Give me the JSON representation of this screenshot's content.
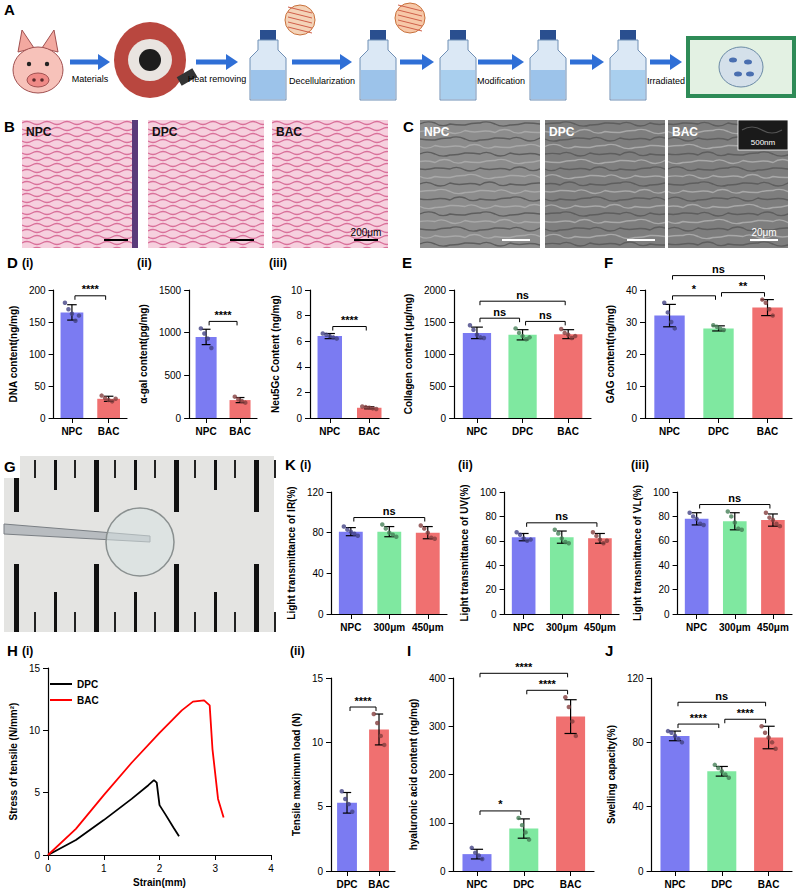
{
  "panels": {
    "A": {
      "label": "A",
      "steps": [
        "Materials",
        "Heat removing",
        "Decellularization",
        "Modification",
        "Irradiated"
      ]
    },
    "B": {
      "label": "B",
      "images": [
        "NPC",
        "DPC",
        "BAC"
      ],
      "scale_bar": "200μm"
    },
    "C": {
      "label": "C",
      "images": [
        "NPC",
        "DPC",
        "BAC"
      ],
      "scale_bar": "20μm",
      "inset_scale_bar": "500nm"
    },
    "G": {
      "label": "G"
    }
  },
  "chart_data": [
    {
      "type": "bar",
      "panel_label": "D",
      "title": "(i)",
      "categories": [
        "NPC",
        "BAC"
      ],
      "values": [
        165,
        30
      ],
      "errors": [
        12,
        4
      ],
      "points": [
        [
          180,
          170,
          163,
          152,
          160
        ],
        [
          35,
          31,
          28,
          26,
          30
        ]
      ],
      "colors": [
        "#7b7bf2",
        "#f07070"
      ],
      "ylabel": "DNA content(ng/mg)",
      "ylim": [
        0,
        200
      ],
      "yticks": [
        0,
        50,
        100,
        150,
        200
      ],
      "grid": false,
      "annotations": [
        {
          "from": "NPC",
          "to": "BAC",
          "label": "****"
        }
      ]
    },
    {
      "type": "bar",
      "title": "(ii)",
      "categories": [
        "NPC",
        "BAC"
      ],
      "values": [
        950,
        210
      ],
      "errors": [
        90,
        30
      ],
      "points": [
        [
          1050,
          990,
          930,
          820
        ],
        [
          250,
          220,
          200,
          180
        ]
      ],
      "colors": [
        "#7b7bf2",
        "#f07070"
      ],
      "ylabel": "α-gal content(pg/mg)",
      "ylim": [
        0,
        1500
      ],
      "yticks": [
        0,
        500,
        1000,
        1500
      ],
      "grid": false,
      "annotations": [
        {
          "from": "NPC",
          "to": "BAC",
          "label": "****"
        }
      ]
    },
    {
      "type": "bar",
      "title": "(iii)",
      "categories": [
        "NPC",
        "BAC"
      ],
      "values": [
        6.4,
        0.8
      ],
      "errors": [
        0.2,
        0.08
      ],
      "points": [
        [
          6.6,
          6.5,
          6.4,
          6.3,
          6.2
        ],
        [
          0.9,
          0.85,
          0.8,
          0.75,
          0.7
        ]
      ],
      "colors": [
        "#7b7bf2",
        "#f07070"
      ],
      "ylabel": "Neu5Gc Content (ng/mg)",
      "ylim": [
        0,
        10
      ],
      "yticks": [
        0,
        2,
        4,
        6,
        8,
        10
      ],
      "grid": false,
      "annotations": [
        {
          "from": "NPC",
          "to": "BAC",
          "label": "****"
        }
      ]
    },
    {
      "type": "bar",
      "panel_label": "E",
      "categories": [
        "NPC",
        "DPC",
        "BAC"
      ],
      "values": [
        1330,
        1300,
        1310
      ],
      "errors": [
        90,
        80,
        70
      ],
      "points": [
        [
          1450,
          1380,
          1300,
          1260,
          1250
        ],
        [
          1400,
          1330,
          1280,
          1230,
          1260
        ],
        [
          1390,
          1330,
          1300,
          1250,
          1280
        ]
      ],
      "colors": [
        "#7b7bf2",
        "#7fe8a0",
        "#f07070"
      ],
      "ylabel": "Collagen content (μg/mg)",
      "ylim": [
        0,
        2000
      ],
      "yticks": [
        0,
        500,
        1000,
        1500,
        2000
      ],
      "grid": false,
      "annotations": [
        {
          "from": "NPC",
          "to": "DPC",
          "label": "ns"
        },
        {
          "from": "DPC",
          "to": "BAC",
          "label": "ns"
        },
        {
          "from": "NPC",
          "to": "BAC",
          "label": "ns"
        }
      ]
    },
    {
      "type": "bar",
      "panel_label": "F",
      "categories": [
        "NPC",
        "DPC",
        "BAC"
      ],
      "values": [
        32,
        28,
        34.5
      ],
      "errors": [
        3.5,
        0.8,
        2.5
      ],
      "points": [
        [
          36,
          33,
          30,
          28
        ],
        [
          29,
          28.5,
          28,
          27.5
        ],
        [
          37,
          36,
          34,
          32
        ]
      ],
      "colors": [
        "#7b7bf2",
        "#7fe8a0",
        "#f07070"
      ],
      "ylabel": "GAG content(ng/mg)",
      "ylim": [
        0,
        40
      ],
      "yticks": [
        0,
        10,
        20,
        30,
        40
      ],
      "grid": false,
      "annotations": [
        {
          "from": "NPC",
          "to": "DPC",
          "label": "*"
        },
        {
          "from": "DPC",
          "to": "BAC",
          "label": "**"
        },
        {
          "from": "NPC",
          "to": "BAC",
          "label": "ns"
        }
      ]
    },
    {
      "type": "bar",
      "panel_label": "K",
      "title": "(i)",
      "categories": [
        "NPC",
        "300μm",
        "450μm"
      ],
      "values": [
        81,
        81,
        80
      ],
      "errors": [
        4,
        5,
        6
      ],
      "points": [
        [
          86,
          83,
          81,
          79,
          77
        ],
        [
          88,
          84,
          80,
          78,
          76
        ],
        [
          87,
          84,
          80,
          75,
          74
        ]
      ],
      "colors": [
        "#7b7bf2",
        "#7fe8a0",
        "#f07070"
      ],
      "ylabel": "Light transmittance of IR(%)",
      "ylim": [
        0,
        120
      ],
      "yticks": [
        0,
        40,
        80,
        120
      ],
      "grid": false,
      "annotations": [
        {
          "from": "NPC",
          "to": "450μm",
          "label": "ns"
        }
      ]
    },
    {
      "type": "bar",
      "title": "(ii)",
      "categories": [
        "NPC",
        "300μm",
        "450μm"
      ],
      "values": [
        63,
        63,
        62
      ],
      "errors": [
        3,
        5,
        4
      ],
      "points": [
        [
          67,
          65,
          62,
          60,
          61
        ],
        [
          69,
          66,
          62,
          59,
          58
        ],
        [
          67,
          64,
          61,
          58,
          60
        ]
      ],
      "colors": [
        "#7b7bf2",
        "#7fe8a0",
        "#f07070"
      ],
      "ylabel": "Light transmittance of UV(%)",
      "ylim": [
        0,
        100
      ],
      "yticks": [
        0,
        20,
        40,
        60,
        80,
        100
      ],
      "grid": false,
      "annotations": [
        {
          "from": "NPC",
          "to": "450μm",
          "label": "ns"
        }
      ]
    },
    {
      "type": "bar",
      "title": "(iii)",
      "categories": [
        "NPC",
        "300μm",
        "450μm"
      ],
      "values": [
        78,
        76,
        77
      ],
      "errors": [
        5,
        7,
        5
      ],
      "points": [
        [
          83,
          80,
          78,
          74,
          73
        ],
        [
          84,
          80,
          75,
          70,
          69
        ],
        [
          83,
          79,
          77,
          74,
          72
        ]
      ],
      "colors": [
        "#7b7bf2",
        "#7fe8a0",
        "#f07070"
      ],
      "ylabel": "Light transmittance of VL(%)",
      "ylim": [
        0,
        100
      ],
      "yticks": [
        0,
        20,
        40,
        60,
        80,
        100
      ],
      "grid": false,
      "annotations": [
        {
          "from": "NPC",
          "to": "450μm",
          "label": "ns"
        }
      ]
    },
    {
      "type": "line",
      "panel_label": "H",
      "title": "(i)",
      "xlabel": "Strain(mm)",
      "ylabel": "Stress of tensile (N/mm²)",
      "xlim": [
        0,
        4
      ],
      "xticks": [
        0,
        1,
        2,
        3,
        4
      ],
      "ylim": [
        0,
        15
      ],
      "yticks": [
        0,
        5,
        10,
        15
      ],
      "grid": false,
      "legend": "upper left",
      "series": [
        {
          "name": "DPC",
          "color": "#000000",
          "x": [
            0,
            0.5,
            1,
            1.5,
            1.8,
            1.9,
            1.95,
            2.0,
            2.1,
            2.25,
            2.35
          ],
          "values": [
            0,
            1.2,
            2.8,
            4.5,
            5.6,
            6.0,
            5.8,
            4.0,
            3.3,
            2.2,
            1.5
          ]
        },
        {
          "name": "BAC",
          "color": "#ff0000",
          "x": [
            0,
            0.5,
            1,
            1.5,
            2,
            2.4,
            2.6,
            2.8,
            2.9,
            2.95,
            3.05,
            3.15
          ],
          "values": [
            0,
            2.1,
            4.8,
            7.4,
            9.8,
            11.6,
            12.3,
            12.4,
            12.0,
            8.5,
            4.5,
            3.0
          ]
        }
      ]
    },
    {
      "type": "bar",
      "title": "(ii)",
      "categories": [
        "DPC",
        "BAC"
      ],
      "values": [
        5.3,
        11
      ],
      "errors": [
        0.8,
        1.2
      ],
      "points": [
        [
          6.2,
          5.6,
          5.2,
          4.6
        ],
        [
          12.2,
          11.5,
          10.5,
          9.8
        ]
      ],
      "colors": [
        "#7b7bf2",
        "#f07070"
      ],
      "ylabel": "Tensile maximum load (N)",
      "ylim": [
        0,
        15
      ],
      "yticks": [
        0,
        5,
        10,
        15
      ],
      "grid": false,
      "annotations": [
        {
          "from": "DPC",
          "to": "BAC",
          "label": "****"
        }
      ]
    },
    {
      "type": "bar",
      "panel_label": "I",
      "categories": [
        "NPC",
        "DPC",
        "BAC"
      ],
      "values": [
        35,
        88,
        320
      ],
      "errors": [
        10,
        20,
        35
      ],
      "points": [
        [
          48,
          38,
          32,
          25
        ],
        [
          110,
          95,
          80,
          65
        ],
        [
          360,
          340,
          310,
          280
        ]
      ],
      "colors": [
        "#7b7bf2",
        "#7fe8a0",
        "#f07070"
      ],
      "ylabel": "hyaluronic acid content (ng/mg)",
      "ylim": [
        0,
        400
      ],
      "yticks": [
        0,
        100,
        200,
        300,
        400
      ],
      "grid": false,
      "annotations": [
        {
          "from": "NPC",
          "to": "DPC",
          "label": "*"
        },
        {
          "from": "DPC",
          "to": "BAC",
          "label": "****"
        },
        {
          "from": "NPC",
          "to": "BAC",
          "label": "****"
        }
      ]
    },
    {
      "type": "bar",
      "panel_label": "J",
      "categories": [
        "NPC",
        "DPC",
        "BAC"
      ],
      "values": [
        84,
        62,
        83
      ],
      "errors": [
        3,
        3,
        7
      ],
      "points": [
        [
          87,
          86,
          84,
          82,
          80
        ],
        [
          66,
          64,
          62,
          60,
          58
        ],
        [
          90,
          86,
          83,
          80,
          76
        ]
      ],
      "colors": [
        "#7b7bf2",
        "#7fe8a0",
        "#f07070"
      ],
      "ylabel": "Swelling capacity(%)",
      "ylim": [
        0,
        120
      ],
      "yticks": [
        0,
        40,
        80,
        120
      ],
      "grid": false,
      "annotations": [
        {
          "from": "NPC",
          "to": "DPC",
          "label": "****"
        },
        {
          "from": "DPC",
          "to": "BAC",
          "label": "****"
        },
        {
          "from": "NPC",
          "to": "BAC",
          "label": "ns"
        }
      ]
    }
  ]
}
